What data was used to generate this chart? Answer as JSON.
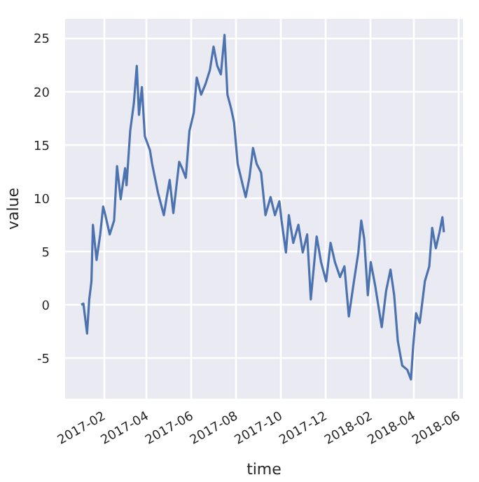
{
  "chart_data": {
    "type": "line",
    "xlabel": "time",
    "ylabel": "value",
    "xlim": [
      "2016-12-10",
      "2018-06-07"
    ],
    "ylim": [
      -8.8,
      26.8
    ],
    "xticks": [
      "2017-02",
      "2017-04",
      "2017-06",
      "2017-08",
      "2017-10",
      "2017-12",
      "2018-02",
      "2018-04",
      "2018-06"
    ],
    "yticks": [
      -5,
      0,
      5,
      10,
      15,
      20,
      25
    ],
    "grid": true,
    "marker": "none",
    "line_style": "solid",
    "x": [
      "2017-01-01",
      "2017-01-04",
      "2017-01-09",
      "2017-01-12",
      "2017-01-15",
      "2017-01-17",
      "2017-01-22",
      "2017-01-27",
      "2017-01-31",
      "2017-02-03",
      "2017-02-09",
      "2017-02-15",
      "2017-02-19",
      "2017-02-24",
      "2017-03-02",
      "2017-03-04",
      "2017-03-09",
      "2017-03-14",
      "2017-03-18",
      "2017-03-21",
      "2017-03-25",
      "2017-03-29",
      "2017-04-05",
      "2017-04-08",
      "2017-04-16",
      "2017-04-24",
      "2017-04-28",
      "2017-05-02",
      "2017-05-07",
      "2017-05-15",
      "2017-05-19",
      "2017-05-24",
      "2017-05-29",
      "2017-06-04",
      "2017-06-08",
      "2017-06-14",
      "2017-06-20",
      "2017-06-26",
      "2017-07-01",
      "2017-07-06",
      "2017-07-11",
      "2017-07-16",
      "2017-07-20",
      "2017-07-25",
      "2017-07-29",
      "2017-08-03",
      "2017-08-10",
      "2017-08-14",
      "2017-08-19",
      "2017-08-24",
      "2017-08-29",
      "2017-09-04",
      "2017-09-10",
      "2017-09-17",
      "2017-09-23",
      "2017-09-29",
      "2017-10-02",
      "2017-10-08",
      "2017-10-12",
      "2017-10-18",
      "2017-10-25",
      "2017-10-31",
      "2017-11-06",
      "2017-11-11",
      "2017-11-19",
      "2017-11-25",
      "2017-12-02",
      "2017-12-08",
      "2017-12-14",
      "2017-12-21",
      "2017-12-27",
      "2018-01-02",
      "2018-01-09",
      "2018-01-15",
      "2018-01-19",
      "2018-01-23",
      "2018-01-28",
      "2018-02-01",
      "2018-02-07",
      "2018-02-16",
      "2018-02-22",
      "2018-02-28",
      "2018-03-05",
      "2018-03-10",
      "2018-03-16",
      "2018-03-23",
      "2018-03-28",
      "2018-03-31",
      "2018-04-04",
      "2018-04-09",
      "2018-04-16",
      "2018-04-22",
      "2018-04-26",
      "2018-05-01",
      "2018-05-06",
      "2018-05-10",
      "2018-05-12"
    ],
    "series": [
      {
        "color": "#4c72b0",
        "values": [
          0.0,
          0.1,
          -2.7,
          0.5,
          2.2,
          7.5,
          4.2,
          6.6,
          9.2,
          8.4,
          6.6,
          7.9,
          13.0,
          9.9,
          12.8,
          11.2,
          16.3,
          18.9,
          22.4,
          17.8,
          20.4,
          15.8,
          14.5,
          13.2,
          10.5,
          8.4,
          10.1,
          11.7,
          8.6,
          13.4,
          12.8,
          11.9,
          16.3,
          18.0,
          21.3,
          19.7,
          20.7,
          22.0,
          24.2,
          22.4,
          21.6,
          25.3,
          19.7,
          18.4,
          17.1,
          13.2,
          11.2,
          10.1,
          11.9,
          14.7,
          13.2,
          12.4,
          8.4,
          10.1,
          8.4,
          9.7,
          7.9,
          4.9,
          8.4,
          5.8,
          7.5,
          4.9,
          6.6,
          0.5,
          6.4,
          4.0,
          2.2,
          5.8,
          4.0,
          2.6,
          3.6,
          -1.1,
          2.2,
          4.9,
          7.9,
          6.2,
          0.9,
          4.0,
          1.8,
          -2.1,
          1.3,
          3.3,
          0.9,
          -3.4,
          -5.7,
          -6.1,
          -7.0,
          -3.9,
          -0.8,
          -1.7,
          2.2,
          3.6,
          7.2,
          5.3,
          6.8,
          8.2,
          6.8
        ]
      }
    ]
  }
}
